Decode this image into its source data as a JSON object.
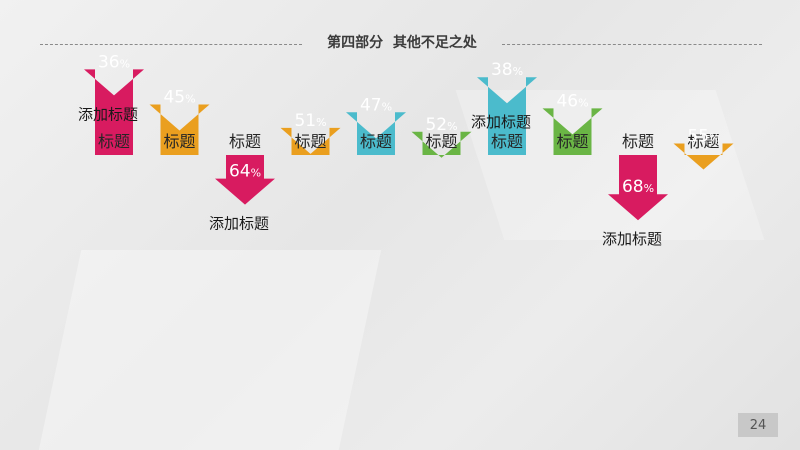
{
  "header": {
    "title": "第四部分  其他不足之处"
  },
  "page_number": "24",
  "colors": {
    "pink": "#d81b60",
    "orange": "#ea9f1f",
    "teal": "#4bbbcc",
    "green": "#6ab545"
  },
  "chart_data": {
    "type": "bar",
    "orientation": "downward-arrows",
    "categories": [
      "标题",
      "标题",
      "标题",
      "标题",
      "标题",
      "标题",
      "标题",
      "标题",
      "标题",
      "标题"
    ],
    "values": [
      36,
      45,
      64,
      51,
      47,
      52,
      38,
      46,
      68,
      55
    ],
    "unit": "%",
    "bar_colors": [
      "pink",
      "orange",
      "pink",
      "orange",
      "teal",
      "green",
      "teal",
      "green",
      "pink",
      "orange"
    ],
    "annotations": [
      {
        "text": "添加标题",
        "index": 0
      },
      {
        "text": "添加标题",
        "index": 2
      },
      {
        "text": "添加标题",
        "index": 6
      },
      {
        "text": "添加标题",
        "index": 8
      }
    ]
  }
}
